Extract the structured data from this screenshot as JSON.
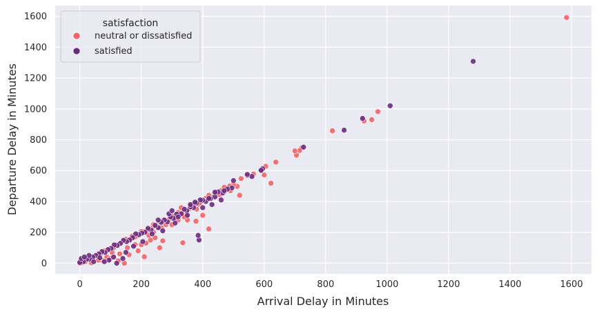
{
  "chart_data": {
    "type": "scatter",
    "xlabel": "Arrival Delay in Minutes",
    "ylabel": "Departure Delay in Minutes",
    "xlim": [
      -80,
      1665
    ],
    "ylim": [
      -70,
      1670
    ],
    "xticks": [
      0,
      200,
      400,
      600,
      800,
      1000,
      1200,
      1400,
      1600
    ],
    "yticks": [
      0,
      200,
      400,
      600,
      800,
      1000,
      1200,
      1400,
      1600
    ],
    "grid": true,
    "legend": {
      "title": "satisfaction",
      "placement": "top-left"
    },
    "series": [
      {
        "name": "neutral or dissatisfied",
        "color": "#f06467",
        "points": [
          [
            1584,
            1592
          ],
          [
            970,
            982
          ],
          [
            950,
            930
          ],
          [
            925,
            922
          ],
          [
            822,
            858
          ],
          [
            722,
            748
          ],
          [
            715,
            730
          ],
          [
            705,
            700
          ],
          [
            700,
            728
          ],
          [
            638,
            655
          ],
          [
            622,
            518
          ],
          [
            605,
            628
          ],
          [
            600,
            572
          ],
          [
            590,
            600
          ],
          [
            565,
            578
          ],
          [
            545,
            568
          ],
          [
            525,
            548
          ],
          [
            520,
            440
          ],
          [
            512,
            498
          ],
          [
            500,
            510
          ],
          [
            490,
            470
          ],
          [
            480,
            488
          ],
          [
            470,
            492
          ],
          [
            460,
            470
          ],
          [
            450,
            452
          ],
          [
            440,
            450
          ],
          [
            430,
            430
          ],
          [
            420,
            440
          ],
          [
            420,
            222
          ],
          [
            410,
            420
          ],
          [
            400,
            310
          ],
          [
            395,
            400
          ],
          [
            385,
            380
          ],
          [
            378,
            272
          ],
          [
            372,
            380
          ],
          [
            360,
            370
          ],
          [
            355,
            350
          ],
          [
            345,
            310
          ],
          [
            335,
            132
          ],
          [
            332,
            330
          ],
          [
            320,
            328
          ],
          [
            310,
            300
          ],
          [
            300,
            305
          ],
          [
            290,
            282
          ],
          [
            280,
            270
          ],
          [
            270,
            275
          ],
          [
            255,
            255
          ],
          [
            250,
            240
          ],
          [
            240,
            250
          ],
          [
            235,
            225
          ],
          [
            230,
            150
          ],
          [
            220,
            215
          ],
          [
            210,
            205
          ],
          [
            200,
            205
          ],
          [
            195,
            190
          ],
          [
            185,
            178
          ],
          [
            180,
            170
          ],
          [
            170,
            175
          ],
          [
            160,
            150
          ],
          [
            150,
            155
          ],
          [
            140,
            140
          ],
          [
            130,
            125
          ],
          [
            120,
            120
          ],
          [
            110,
            100
          ],
          [
            105,
            70
          ],
          [
            100,
            98
          ],
          [
            90,
            85
          ],
          [
            80,
            80
          ],
          [
            72,
            20
          ],
          [
            70,
            65
          ],
          [
            60,
            58
          ],
          [
            50,
            45
          ],
          [
            42,
            35
          ],
          [
            35,
            30
          ],
          [
            25,
            20
          ],
          [
            18,
            10
          ],
          [
            10,
            5
          ],
          [
            5,
            0
          ],
          [
            0,
            0
          ],
          [
            3,
            15
          ],
          [
            260,
            100
          ],
          [
            270,
            145
          ],
          [
            210,
            42
          ],
          [
            245,
            165
          ],
          [
            300,
            250
          ],
          [
            310,
            290
          ],
          [
            350,
            280
          ],
          [
            365,
            360
          ],
          [
            180,
            120
          ],
          [
            130,
            60
          ],
          [
            155,
            100
          ],
          [
            88,
            40
          ],
          [
            60,
            20
          ],
          [
            38,
            2
          ],
          [
            145,
            0
          ],
          [
            125,
            15
          ],
          [
            100,
            30
          ],
          [
            160,
            55
          ],
          [
            190,
            80
          ],
          [
            200,
            120
          ],
          [
            215,
            130
          ],
          [
            225,
            180
          ],
          [
            240,
            200
          ],
          [
            265,
            230
          ],
          [
            280,
            250
          ],
          [
            320,
            280
          ],
          [
            340,
            300
          ],
          [
            330,
            360
          ],
          [
            380,
            350
          ],
          [
            390,
            390
          ],
          [
            405,
            405
          ],
          [
            455,
            445
          ],
          [
            470,
            460
          ],
          [
            488,
            500
          ]
        ]
      },
      {
        "name": "satisfied",
        "color": "#6a2b80",
        "points": [
          [
            1280,
            1308
          ],
          [
            1010,
            1020
          ],
          [
            920,
            938
          ],
          [
            860,
            862
          ],
          [
            728,
            752
          ],
          [
            595,
            612
          ],
          [
            590,
            602
          ],
          [
            560,
            562
          ],
          [
            545,
            575
          ],
          [
            500,
            535
          ],
          [
            495,
            488
          ],
          [
            480,
            480
          ],
          [
            465,
            455
          ],
          [
            450,
            462
          ],
          [
            440,
            430
          ],
          [
            425,
            418
          ],
          [
            410,
            400
          ],
          [
            400,
            408
          ],
          [
            392,
            410
          ],
          [
            388,
            150
          ],
          [
            385,
            180
          ],
          [
            380,
            390
          ],
          [
            370,
            360
          ],
          [
            360,
            365
          ],
          [
            348,
            340
          ],
          [
            340,
            350
          ],
          [
            330,
            320
          ],
          [
            315,
            318
          ],
          [
            305,
            290
          ],
          [
            295,
            300
          ],
          [
            285,
            268
          ],
          [
            275,
            280
          ],
          [
            265,
            265
          ],
          [
            255,
            230
          ],
          [
            245,
            245
          ],
          [
            232,
            215
          ],
          [
            222,
            225
          ],
          [
            212,
            200
          ],
          [
            202,
            195
          ],
          [
            192,
            185
          ],
          [
            182,
            190
          ],
          [
            172,
            165
          ],
          [
            162,
            150
          ],
          [
            152,
            140
          ],
          [
            142,
            148
          ],
          [
            132,
            128
          ],
          [
            122,
            115
          ],
          [
            112,
            118
          ],
          [
            102,
            95
          ],
          [
            92,
            88
          ],
          [
            82,
            70
          ],
          [
            72,
            75
          ],
          [
            62,
            60
          ],
          [
            52,
            50
          ],
          [
            42,
            40
          ],
          [
            32,
            25
          ],
          [
            22,
            25
          ],
          [
            12,
            10
          ],
          [
            0,
            5
          ],
          [
            5,
            30
          ],
          [
            95,
            20
          ],
          [
            110,
            40
          ],
          [
            150,
            70
          ],
          [
            175,
            110
          ],
          [
            205,
            140
          ],
          [
            235,
            190
          ],
          [
            270,
            210
          ],
          [
            310,
            260
          ],
          [
            350,
            310
          ],
          [
            400,
            360
          ],
          [
            430,
            380
          ],
          [
            460,
            410
          ],
          [
            120,
            0
          ],
          [
            140,
            30
          ],
          [
            80,
            10
          ],
          [
            65,
            35
          ],
          [
            45,
            10
          ],
          [
            30,
            50
          ],
          [
            15,
            40
          ],
          [
            255,
            280
          ],
          [
            290,
            320
          ],
          [
            300,
            340
          ],
          [
            320,
            300
          ],
          [
            360,
            380
          ],
          [
            375,
            395
          ],
          [
            420,
            420
          ],
          [
            440,
            460
          ],
          [
            470,
            470
          ]
        ]
      }
    ]
  }
}
